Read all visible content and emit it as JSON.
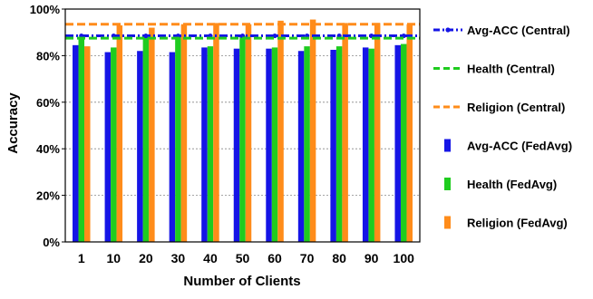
{
  "chart_data": {
    "type": "bar",
    "title": "",
    "xlabel": "Number of Clients",
    "ylabel": "Accuracy",
    "categories": [
      "1",
      "10",
      "20",
      "30",
      "40",
      "50",
      "60",
      "70",
      "80",
      "90",
      "100"
    ],
    "ylim": [
      0,
      100
    ],
    "yticks": [
      "0%",
      "20%",
      "40%",
      "60%",
      "80%",
      "100%"
    ],
    "grid": "horizontal dotted",
    "legend_position": "right",
    "series": [
      {
        "name": "Avg-ACC (FedAvg)",
        "color": "#1515e6",
        "values": [
          84.5,
          81.5,
          82.0,
          81.5,
          83.5,
          83.0,
          83.0,
          82.0,
          82.5,
          83.5,
          84.5
        ]
      },
      {
        "name": "Health (FedAvg)",
        "color": "#1fcc1f",
        "values": [
          88.0,
          83.5,
          88.0,
          88.0,
          84.0,
          88.5,
          83.5,
          84.0,
          84.0,
          83.0,
          85.0
        ]
      },
      {
        "name": "Religion (FedAvg)",
        "color": "#ff8c1a",
        "values": [
          84.0,
          93.0,
          92.0,
          93.5,
          94.0,
          93.5,
          95.0,
          95.5,
          94.0,
          94.0,
          93.5
        ]
      }
    ],
    "reference_lines": [
      {
        "name": "Avg-ACC (Central)",
        "color": "#1515e6",
        "value": 88.5,
        "style": "dashed-dotted"
      },
      {
        "name": "Health (Central)",
        "color": "#1fcc1f",
        "value": 87.5,
        "style": "dashed"
      },
      {
        "name": "Religion (Central)",
        "color": "#ff8c1a",
        "value": 93.5,
        "style": "dashed"
      }
    ],
    "legend": [
      "Avg-ACC (Central)",
      "Health (Central)",
      "Religion (Central)",
      "Avg-ACC (FedAvg)",
      "Health (FedAvg)",
      "Religion (FedAvg)"
    ]
  }
}
